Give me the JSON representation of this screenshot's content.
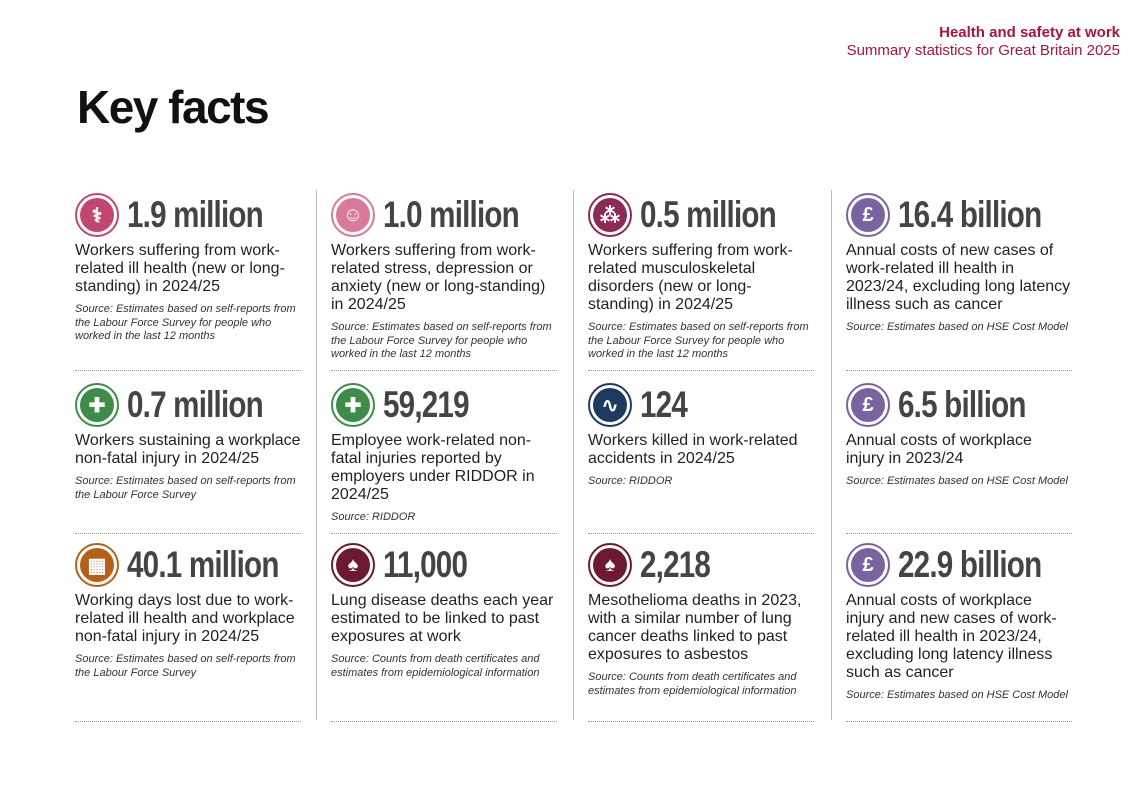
{
  "header": {
    "title": "Health and safety at work",
    "subtitle": "Summary statistics for Great Britain 2025"
  },
  "page_title": "Key facts",
  "colors": {
    "header": "#a5173a",
    "number": "#444444"
  },
  "columns": [
    [
      {
        "icon": "stethoscope-icon",
        "color": "#c2476f",
        "value": "1.9 million",
        "desc": "Workers suffering from work-related ill health (new or long-standing) in 2024/25",
        "source": "Source: Estimates based on self-reports from the Labour Force Survey for people who worked in the last 12 months"
      },
      {
        "icon": "medical-cross-icon",
        "color": "#3f8c4a",
        "value": "0.7 million",
        "desc": "Workers sustaining a workplace non-fatal injury in 2024/25",
        "source": "Source: Estimates based on self-reports from the Labour Force Survey"
      },
      {
        "icon": "calendar-icon",
        "color": "#b5601a",
        "value": "40.1 million",
        "desc": "Working days lost due to work-related ill health and workplace non-fatal injury in 2024/25",
        "source": "Source: Estimates based on self-reports from the Labour Force Survey"
      }
    ],
    [
      {
        "icon": "head-icon",
        "color": "#d87a98",
        "value": "1.0 million",
        "desc": "Workers suffering from work-related stress, depression or anxiety (new or long-standing) in 2024/25",
        "source": "Source: Estimates based on self-reports from the Labour Force Survey for people who worked in the last 12 months"
      },
      {
        "icon": "medical-cross-icon",
        "color": "#3f8c4a",
        "value": "59,219",
        "desc": "Employee work-related non-fatal injuries reported by employers under RIDDOR in 2024/25",
        "source": "Source: RIDDOR"
      },
      {
        "icon": "lungs-icon",
        "color": "#6b1a30",
        "value": "11,000",
        "desc": "Lung disease deaths each year estimated to be linked to past exposures at work",
        "source": "Source: Counts from death certificates and estimates from epidemiological information"
      }
    ],
    [
      {
        "icon": "spine-icon",
        "color": "#8b2a55",
        "value": "0.5 million",
        "desc": "Workers suffering from work-related musculoskeletal disorders (new or long-standing) in 2024/25",
        "source": "Source: Estimates based on self-reports from the Labour Force Survey for people who worked in the last 12 months"
      },
      {
        "icon": "heartbeat-icon",
        "color": "#1e3a5f",
        "value": "124",
        "desc": "Workers killed in work-related accidents in 2024/25",
        "source": "Source: RIDDOR"
      },
      {
        "icon": "lungs-icon",
        "color": "#6b1a30",
        "value": "2,218",
        "desc": "Mesothelioma deaths in 2023, with a similar number of lung cancer deaths linked to past exposures to asbestos",
        "source": "Source: Counts from death certificates and estimates from epidemiological information"
      }
    ],
    [
      {
        "icon": "pound-icon",
        "color": "#7a64a0",
        "value": "16.4 billion",
        "desc": "Annual costs of new cases of work-related ill health in 2023/24, excluding long latency illness such as cancer",
        "source": "Source: Estimates based on HSE Cost Model"
      },
      {
        "icon": "pound-icon",
        "color": "#7a64a0",
        "value": "6.5 billion",
        "desc": "Annual costs of workplace injury in 2023/24",
        "source": "Source: Estimates based on HSE Cost Model"
      },
      {
        "icon": "pound-icon",
        "color": "#7a64a0",
        "value": "22.9 billion",
        "desc": "Annual costs of workplace injury and new cases of work-related ill health in 2023/24, excluding long latency illness such as cancer",
        "source": "Source: Estimates based on HSE Cost Model"
      }
    ]
  ]
}
